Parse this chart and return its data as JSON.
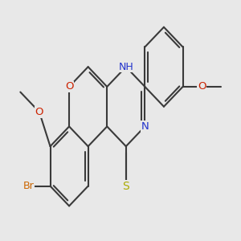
{
  "bg": "#e8e8e8",
  "bond_color": "#3a3a3a",
  "bond_lw": 1.5,
  "figsize": [
    3.0,
    3.0
  ],
  "dpi": 100,
  "colors": {
    "O": "#cc2200",
    "N": "#2233cc",
    "S": "#aaaa00",
    "Br": "#cc6600",
    "C": "#3a3a3a"
  },
  "font_sizes": {
    "O": 9.5,
    "N": 9.5,
    "S": 10.0,
    "Br": 9.0,
    "NH": 9.0,
    "OMe": 9.0,
    "methoxy": 8.5
  }
}
